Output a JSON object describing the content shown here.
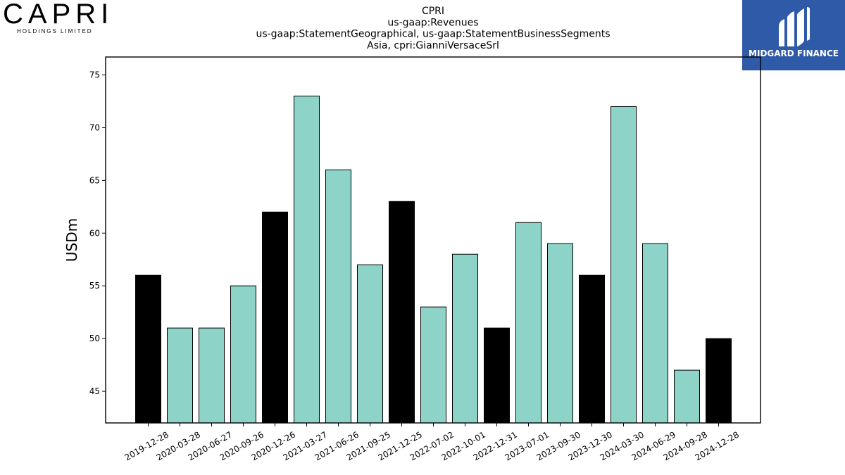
{
  "logos": {
    "capri_word": "CAPRI",
    "capri_sub": "HOLDINGS LIMITED",
    "midgard_text": "MIDGARD FINANCE"
  },
  "colors": {
    "bar_fill": "#8dd3c7",
    "bar_highlight": "#000000",
    "midgard_bg": "#2f5aa8"
  },
  "chart_data": {
    "type": "bar",
    "title": [
      "CPRI",
      "us-gaap:Revenues",
      "us-gaap:StatementGeographical, us-gaap:StatementBusinessSegments",
      "Asia, cpri:GianniVersaceSrl"
    ],
    "xlabel": "",
    "ylabel": "USDm",
    "ylim": [
      42,
      76.7
    ],
    "yticks": [
      45,
      50,
      55,
      60,
      65,
      70,
      75
    ],
    "categories": [
      "2019-12-28",
      "2020-03-28",
      "2020-06-27",
      "2020-09-26",
      "2020-12-26",
      "2021-03-27",
      "2021-06-26",
      "2021-09-25",
      "2021-12-25",
      "2022-07-02",
      "2022-10-01",
      "2022-12-31",
      "2023-07-01",
      "2023-09-30",
      "2023-12-30",
      "2024-03-30",
      "2024-06-29",
      "2024-09-28",
      "2024-12-28"
    ],
    "values": [
      56,
      51,
      51,
      55,
      62,
      73,
      66,
      57,
      63,
      53,
      58,
      51,
      61,
      59,
      56,
      72,
      59,
      47,
      50
    ],
    "highlighted": [
      true,
      false,
      false,
      false,
      true,
      false,
      false,
      false,
      true,
      false,
      false,
      true,
      false,
      false,
      true,
      false,
      false,
      false,
      true
    ],
    "grid": false,
    "legend": "none"
  }
}
